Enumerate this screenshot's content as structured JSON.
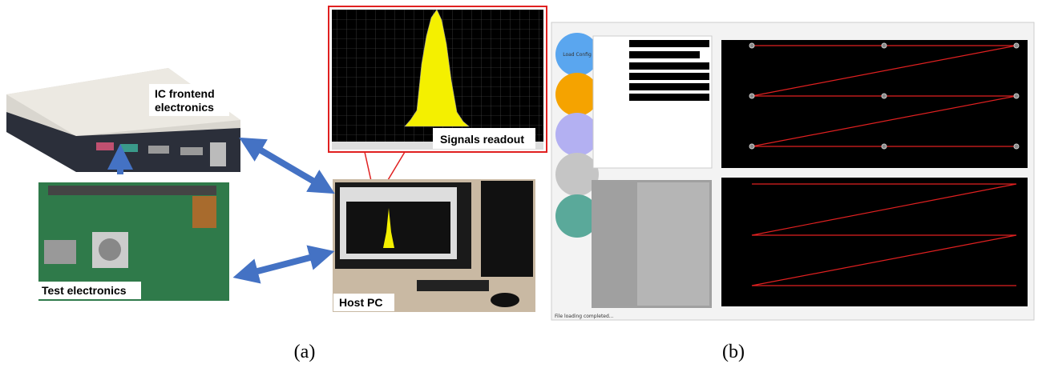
{
  "panel_a": {
    "device_label": "IC frontend electronics",
    "readout_label": "Signals readout",
    "board_label": "Test electronics",
    "pc_label": "Host PC",
    "caption": "(a)"
  },
  "panel_b": {
    "button_label": "Load Config",
    "status": "File loading completed...",
    "caption": "(b)"
  }
}
